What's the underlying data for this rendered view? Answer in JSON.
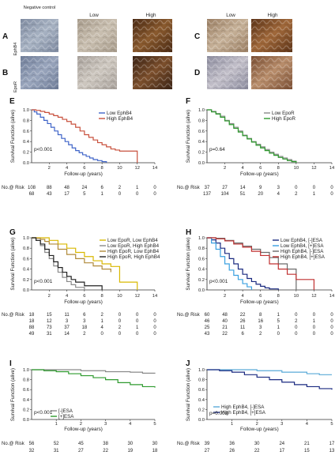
{
  "figure": {
    "micro": {
      "panels": [
        {
          "label": "A",
          "row_label": "EphB4"
        },
        {
          "label": "B",
          "row_label": "EpoR"
        },
        {
          "label": "C"
        },
        {
          "label": "D"
        }
      ],
      "col_labels_left": [
        "Negative control",
        "Low",
        "High"
      ],
      "col_labels_right": [
        "Low",
        "High"
      ],
      "tiles": [
        {
          "name": "A-negative",
          "colors": [
            "#7e8aa0",
            "#a8b3c3"
          ]
        },
        {
          "name": "A-low",
          "colors": [
            "#a69a8a",
            "#c9bfb0"
          ]
        },
        {
          "name": "A-high",
          "colors": [
            "#4a2a14",
            "#8a5a2e"
          ]
        },
        {
          "name": "B-negative",
          "colors": [
            "#6f7d98",
            "#9aa6bd"
          ]
        },
        {
          "name": "B-low",
          "colors": [
            "#a7a09a",
            "#cdc7bf"
          ]
        },
        {
          "name": "B-high",
          "colors": [
            "#3b2416",
            "#7c4f2c"
          ]
        },
        {
          "name": "C-low",
          "colors": [
            "#9a7e63",
            "#c6b198"
          ]
        },
        {
          "name": "C-high",
          "colors": [
            "#5d3418",
            "#a0683a"
          ]
        },
        {
          "name": "D-low",
          "colors": [
            "#8c8c9e",
            "#c2bfc9"
          ]
        },
        {
          "name": "D-high",
          "colors": [
            "#7a4e33",
            "#b88d6b"
          ]
        }
      ]
    }
  },
  "chart_data": [
    {
      "panel": "E",
      "type": "line",
      "xlabel": "Follow-up (years)",
      "ylabel": "Survival Function (alive)",
      "xlim": [
        0,
        14
      ],
      "ylim": [
        0,
        1
      ],
      "xticks": [
        "2",
        "4",
        "6",
        "8",
        "10",
        "12",
        "14"
      ],
      "yticks": [
        "0.0",
        "0.2",
        "0.4",
        "0.6",
        "0.8",
        "1.0"
      ],
      "pvalue": "p<0.001",
      "risk_label": "No.@ Risk",
      "legend": [
        "Low EphB4",
        "High EphB4"
      ],
      "series": [
        {
          "name": "Low EphB4",
          "color": "#3f64c8",
          "x": [
            0,
            0.3,
            0.6,
            1,
            1.4,
            1.8,
            2.2,
            2.6,
            3,
            3.4,
            3.8,
            4.2,
            4.6,
            5,
            5.4,
            5.8,
            6.2,
            6.6,
            7,
            7.5,
            8,
            8.5
          ],
          "y": [
            1,
            0.96,
            0.92,
            0.86,
            0.8,
            0.74,
            0.67,
            0.6,
            0.53,
            0.46,
            0.4,
            0.34,
            0.28,
            0.23,
            0.19,
            0.15,
            0.12,
            0.09,
            0.06,
            0.04,
            0.02,
            0
          ]
        },
        {
          "name": "High EphB4",
          "color": "#c8503c",
          "x": [
            0,
            0.5,
            1,
            1.5,
            2,
            2.5,
            3,
            3.5,
            4,
            4.5,
            5,
            5.5,
            6,
            6.5,
            7,
            7.5,
            8,
            8.5,
            9,
            9.5,
            10,
            12
          ],
          "y": [
            1,
            0.99,
            0.97,
            0.95,
            0.92,
            0.89,
            0.86,
            0.82,
            0.78,
            0.73,
            0.67,
            0.6,
            0.53,
            0.48,
            0.43,
            0.38,
            0.34,
            0.3,
            0.26,
            0.24,
            0.22,
            0
          ]
        }
      ],
      "risk_cols": [
        "2",
        "4",
        "6",
        "8",
        "10",
        "12",
        "14"
      ],
      "risk_rows": [
        [
          "108",
          "88",
          "48",
          "24",
          "6",
          "2",
          "1",
          "0"
        ],
        [
          "68",
          "43",
          "17",
          "5",
          "1",
          "0",
          "0",
          "0"
        ]
      ]
    },
    {
      "panel": "F",
      "type": "line",
      "xlabel": "Follow-up (years)",
      "ylabel": "Survival Function (alive)",
      "xlim": [
        0,
        14
      ],
      "ylim": [
        0,
        1
      ],
      "xticks": [
        "2",
        "4",
        "6",
        "8",
        "10",
        "12",
        "14"
      ],
      "yticks": [
        "0.0",
        "0.2",
        "0.4",
        "0.6",
        "0.8",
        "1.0"
      ],
      "pvalue": "p=0.64",
      "risk_label": "No.@ Risk",
      "legend": [
        "Low EpoR",
        "High EpoR"
      ],
      "series": [
        {
          "name": "Low EpoR",
          "color": "#8a8a8a",
          "x": [
            0,
            0.5,
            1,
            1.5,
            2,
            2.5,
            3,
            3.5,
            4,
            4.5,
            5,
            5.5,
            6,
            6.5,
            7,
            7.5,
            8,
            8.5,
            9,
            9.5,
            10
          ],
          "y": [
            1,
            0.97,
            0.93,
            0.88,
            0.8,
            0.74,
            0.67,
            0.6,
            0.52,
            0.46,
            0.4,
            0.35,
            0.3,
            0.25,
            0.2,
            0.16,
            0.12,
            0.09,
            0.06,
            0.03,
            0
          ]
        },
        {
          "name": "High EpoR",
          "color": "#2e9a2e",
          "x": [
            0,
            0.5,
            1,
            1.5,
            2,
            2.5,
            3,
            3.5,
            4,
            4.5,
            5,
            5.5,
            6,
            6.5,
            7,
            7.5,
            8,
            8.5,
            9,
            9.5,
            10
          ],
          "y": [
            1,
            0.96,
            0.92,
            0.86,
            0.79,
            0.72,
            0.65,
            0.58,
            0.51,
            0.45,
            0.39,
            0.33,
            0.28,
            0.23,
            0.18,
            0.14,
            0.1,
            0.07,
            0.04,
            0.02,
            0
          ]
        }
      ],
      "risk_cols": [
        "2",
        "4",
        "6",
        "8",
        "10",
        "12",
        "14"
      ],
      "risk_rows": [
        [
          "37",
          "27",
          "14",
          "9",
          "3",
          "0",
          "0",
          "0"
        ],
        [
          "137",
          "104",
          "51",
          "20",
          "4",
          "2",
          "1",
          "0"
        ]
      ]
    },
    {
      "panel": "G",
      "type": "line",
      "xlabel": "Follow-up (years)",
      "ylabel": "Survival Function (alive)",
      "xlim": [
        0,
        14
      ],
      "ylim": [
        0,
        1
      ],
      "xticks": [
        "2",
        "4",
        "6",
        "8",
        "10",
        "12",
        "14"
      ],
      "yticks": [
        "0.0",
        "0.2",
        "0.4",
        "0.6",
        "0.8",
        "1.0"
      ],
      "pvalue": "p<0.001",
      "risk_label": "No.@ Risk",
      "legend": [
        "Low EpoR, Low EphB4",
        "Low EpoR, High EphB4",
        "High EpoR, Low EphB4",
        "High EpoR, High EphB4"
      ],
      "series": [
        {
          "name": "Low EpoR, Low EphB4",
          "color": "#d9b800",
          "x": [
            0,
            1,
            2,
            3,
            4,
            5,
            6,
            7,
            8,
            9,
            10,
            12
          ],
          "y": [
            1,
            1,
            0.95,
            0.88,
            0.8,
            0.72,
            0.64,
            0.56,
            0.5,
            0.45,
            0.15,
            0
          ]
        },
        {
          "name": "Low EpoR, High EphB4",
          "color": "#8a8a8a",
          "x": [
            0,
            0.5,
            1,
            1.5,
            2,
            2.5,
            3,
            3.5,
            4,
            4.5,
            5,
            6
          ],
          "y": [
            1,
            0.95,
            0.85,
            0.72,
            0.6,
            0.46,
            0.34,
            0.24,
            0.16,
            0.1,
            0.05,
            0
          ]
        },
        {
          "name": "High EpoR, Low EphB4",
          "color": "#b08a3a",
          "x": [
            0,
            0.5,
            1,
            1.5,
            2,
            3,
            4,
            5,
            6,
            7,
            8,
            9
          ],
          "y": [
            1,
            0.99,
            0.97,
            0.93,
            0.88,
            0.78,
            0.68,
            0.6,
            0.52,
            0.46,
            0.4,
            0.34
          ]
        },
        {
          "name": "High EpoR, High EphB4",
          "color": "#222222",
          "x": [
            0,
            0.5,
            1,
            1.5,
            2,
            2.5,
            3,
            3.5,
            4,
            4.5,
            5,
            6,
            8
          ],
          "y": [
            1,
            0.95,
            0.88,
            0.78,
            0.66,
            0.54,
            0.43,
            0.34,
            0.26,
            0.2,
            0.15,
            0.08,
            0
          ]
        }
      ],
      "risk_cols": [
        "2",
        "4",
        "6",
        "8",
        "10",
        "12",
        "14"
      ],
      "risk_rows": [
        [
          "18",
          "15",
          "11",
          "6",
          "2",
          "0",
          "0",
          "0"
        ],
        [
          "18",
          "12",
          "3",
          "3",
          "1",
          "0",
          "0",
          "0"
        ],
        [
          "88",
          "73",
          "37",
          "18",
          "4",
          "2",
          "1",
          "0"
        ],
        [
          "49",
          "31",
          "14",
          "2",
          "0",
          "0",
          "0",
          "0"
        ]
      ]
    },
    {
      "panel": "H",
      "type": "line",
      "xlabel": "Follow-up (years)",
      "ylabel": "Survival Function (alive)",
      "xlim": [
        0,
        14
      ],
      "ylim": [
        0,
        1
      ],
      "xticks": [
        "2",
        "4",
        "6",
        "8",
        "10",
        "12",
        "14"
      ],
      "yticks": [
        "0.0",
        "0.2",
        "0.4",
        "0.6",
        "0.8",
        "1.0"
      ],
      "pvalue": "p<0.001",
      "risk_label": "No.@ Risk",
      "legend": [
        "Low EphB4, [-]ESA",
        "Low EphB4, [+]ESA",
        "High EphB4, [-]ESA",
        "High EphB4, [+]ESA"
      ],
      "series": [
        {
          "name": "Low EphB4, [-]ESA",
          "color": "#1a2a80",
          "x": [
            0,
            0.5,
            1,
            1.5,
            2,
            2.5,
            3,
            3.5,
            4,
            4.5,
            5,
            5.5,
            6,
            6.5,
            7,
            8
          ],
          "y": [
            1,
            0.96,
            0.9,
            0.8,
            0.7,
            0.6,
            0.5,
            0.4,
            0.3,
            0.22,
            0.16,
            0.11,
            0.07,
            0.04,
            0.02,
            0
          ]
        },
        {
          "name": "Low EphB4, [+]ESA",
          "color": "#3aa0e0",
          "x": [
            0,
            0.5,
            1,
            1.5,
            2,
            2.5,
            3,
            3.5,
            4,
            4.5,
            5
          ],
          "y": [
            1,
            0.9,
            0.78,
            0.64,
            0.5,
            0.38,
            0.28,
            0.2,
            0.12,
            0.06,
            0
          ]
        },
        {
          "name": "High EphB4, [-]ESA",
          "color": "#6a6a6a",
          "x": [
            0,
            1,
            2,
            3,
            4,
            5,
            6,
            7,
            8,
            9,
            10
          ],
          "y": [
            1,
            0.99,
            0.95,
            0.9,
            0.84,
            0.78,
            0.72,
            0.62,
            0.5,
            0.4,
            0
          ]
        },
        {
          "name": "High EphB4, [+]ESA",
          "color": "#c03030",
          "x": [
            0,
            1,
            2,
            3,
            4,
            5,
            6,
            7,
            8,
            9,
            10,
            12
          ],
          "y": [
            1,
            0.98,
            0.94,
            0.88,
            0.82,
            0.74,
            0.66,
            0.5,
            0.4,
            0.3,
            0.2,
            0
          ]
        }
      ],
      "risk_cols": [
        "2",
        "4",
        "6",
        "8",
        "10",
        "12",
        "14"
      ],
      "risk_rows": [
        [
          "60",
          "48",
          "22",
          "8",
          "1",
          "0",
          "0",
          "0"
        ],
        [
          "46",
          "40",
          "26",
          "16",
          "5",
          "2",
          "1",
          "0"
        ],
        [
          "25",
          "21",
          "11",
          "3",
          "1",
          "0",
          "0",
          "0"
        ],
        [
          "43",
          "22",
          "6",
          "2",
          "0",
          "0",
          "0",
          "0"
        ]
      ]
    },
    {
      "panel": "I",
      "type": "line",
      "xlabel": "Follow-up (years)",
      "ylabel": "Survival Function (alive)",
      "xlim": [
        0,
        5
      ],
      "ylim": [
        0,
        1
      ],
      "xticks": [
        "1",
        "2",
        "3",
        "4",
        "5"
      ],
      "yticks": [
        "0.0",
        "0.2",
        "0.4",
        "0.6",
        "0.8",
        "1.0"
      ],
      "pvalue": "p<0.001",
      "risk_label": "No.@ Risk",
      "legend": [
        "[-]ESA",
        "[+]ESA"
      ],
      "series": [
        {
          "name": "[-]ESA",
          "color": "#8a8a8a",
          "x": [
            0,
            1,
            2,
            3,
            4,
            4.5,
            5
          ],
          "y": [
            1,
            1,
            0.98,
            0.96,
            0.95,
            0.93,
            0.92
          ]
        },
        {
          "name": "[+]ESA",
          "color": "#2e9a2e",
          "x": [
            0,
            0.5,
            1,
            1.5,
            2,
            2.5,
            3,
            3.5,
            4,
            4.5,
            5
          ],
          "y": [
            1,
            0.98,
            0.96,
            0.92,
            0.88,
            0.84,
            0.8,
            0.74,
            0.7,
            0.66,
            0.64
          ]
        }
      ],
      "risk_cols": [
        "1",
        "2",
        "3",
        "4",
        "5"
      ],
      "risk_rows": [
        [
          "56",
          "52",
          "45",
          "38",
          "30",
          "30"
        ],
        [
          "32",
          "31",
          "27",
          "22",
          "19",
          "18"
        ]
      ]
    },
    {
      "panel": "J",
      "type": "line",
      "xlabel": "Follow-up (years)",
      "ylabel": "Survival Function (alive)",
      "xlim": [
        0,
        5
      ],
      "ylim": [
        0,
        1
      ],
      "xticks": [
        "1",
        "2",
        "3",
        "4",
        "5"
      ],
      "yticks": [
        "0.0",
        "0.2",
        "0.4",
        "0.6",
        "0.8",
        "1.0"
      ],
      "pvalue": "p=0.002",
      "risk_label": "No.@ Risk",
      "legend": [
        "High EphB4, [-]ESA",
        "High EphB4, [+]ESA"
      ],
      "series": [
        {
          "name": "High EphB4, [-]ESA",
          "color": "#5aaad8",
          "x": [
            0,
            1,
            2,
            3,
            4,
            4.5,
            5
          ],
          "y": [
            1,
            1,
            0.98,
            0.95,
            0.92,
            0.9,
            0.9
          ]
        },
        {
          "name": "High EphB4, [+]ESA",
          "color": "#1a2a80",
          "x": [
            0,
            0.5,
            1,
            1.5,
            2,
            2.5,
            3,
            3.5,
            4,
            4.5,
            5
          ],
          "y": [
            1,
            0.98,
            0.95,
            0.9,
            0.85,
            0.8,
            0.75,
            0.7,
            0.66,
            0.62,
            0.6
          ]
        }
      ],
      "risk_cols": [
        "1",
        "2",
        "3",
        "4",
        "5"
      ],
      "risk_rows": [
        [
          "39",
          "36",
          "30",
          "24",
          "21",
          "17"
        ],
        [
          "27",
          "26",
          "22",
          "17",
          "15",
          "13"
        ]
      ]
    }
  ]
}
